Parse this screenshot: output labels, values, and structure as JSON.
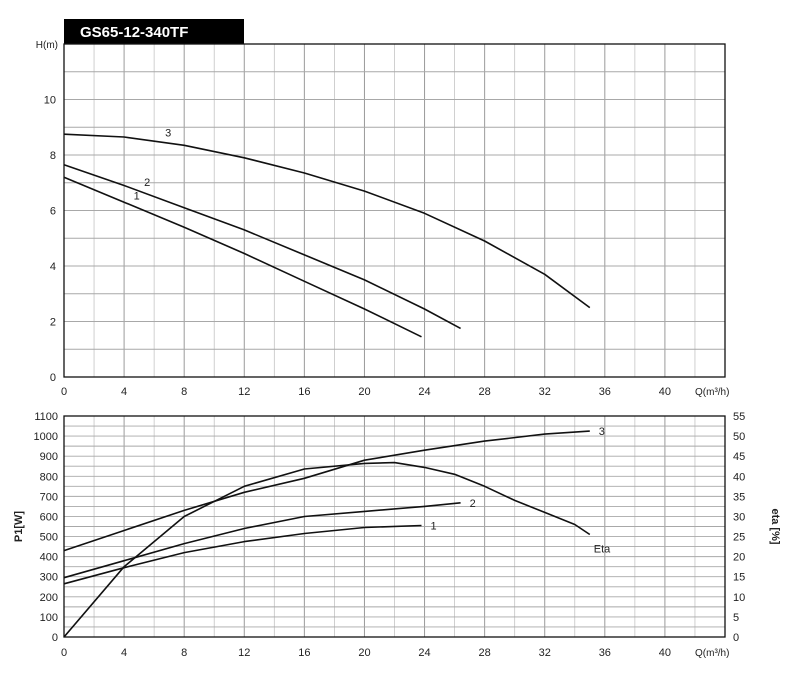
{
  "chart_data": [
    {
      "type": "line",
      "title": "GS65-12-340TF",
      "xlabel": "Q(m³/h)",
      "ylabel": "H(m)",
      "xlim": [
        0,
        44
      ],
      "ylim": [
        0,
        12
      ],
      "xticks": [
        0,
        4,
        8,
        12,
        16,
        20,
        24,
        28,
        32,
        36,
        40
      ],
      "yticks": [
        0,
        2,
        4,
        6,
        8,
        10
      ],
      "grid": true,
      "series": [
        {
          "name": "1",
          "x": [
            0,
            4,
            8,
            12,
            16,
            20,
            23.8
          ],
          "y": [
            7.2,
            6.3,
            5.4,
            4.45,
            3.45,
            2.45,
            1.45
          ]
        },
        {
          "name": "2",
          "x": [
            0,
            4,
            8,
            12,
            16,
            20,
            24,
            26.4
          ],
          "y": [
            7.65,
            6.9,
            6.1,
            5.3,
            4.4,
            3.5,
            2.45,
            1.75
          ]
        },
        {
          "name": "3",
          "x": [
            0,
            4,
            8,
            12,
            16,
            20,
            24,
            28,
            32,
            35
          ],
          "y": [
            8.75,
            8.65,
            8.35,
            7.9,
            7.35,
            6.7,
            5.9,
            4.9,
            3.7,
            2.5
          ]
        }
      ]
    },
    {
      "type": "line",
      "xlabel": "Q(m³/h)",
      "ylabel": "P1[W]",
      "y2label": "eta  [%]",
      "xlim": [
        0,
        44
      ],
      "ylim": [
        0,
        1100
      ],
      "y2lim": [
        0,
        55
      ],
      "xticks": [
        0,
        4,
        8,
        12,
        16,
        20,
        24,
        28,
        32,
        36,
        40
      ],
      "yticks": [
        0,
        100,
        200,
        300,
        400,
        500,
        600,
        700,
        800,
        900,
        1000,
        1100
      ],
      "y2ticks": [
        0,
        5,
        10,
        15,
        20,
        25,
        30,
        35,
        40,
        45,
        50,
        55
      ],
      "grid": true,
      "series": [
        {
          "name": "1",
          "axis": "left",
          "x": [
            0,
            4,
            8,
            12,
            16,
            20,
            23.8
          ],
          "y": [
            265,
            345,
            420,
            475,
            515,
            545,
            555
          ]
        },
        {
          "name": "2",
          "axis": "left",
          "x": [
            0,
            4,
            8,
            12,
            16,
            20,
            24,
            26.4
          ],
          "y": [
            295,
            380,
            465,
            540,
            600,
            625,
            650,
            668
          ]
        },
        {
          "name": "3",
          "axis": "left",
          "x": [
            0,
            4,
            8,
            12,
            16,
            20,
            24,
            28,
            32,
            35
          ],
          "y": [
            430,
            530,
            630,
            720,
            790,
            880,
            930,
            975,
            1010,
            1025
          ]
        },
        {
          "name": "Eta",
          "axis": "right",
          "x": [
            0,
            4,
            8,
            12,
            16,
            20,
            22,
            24,
            26,
            28,
            30,
            32,
            34,
            35
          ],
          "y": [
            0,
            17.5,
            30,
            37.5,
            41.8,
            43.2,
            43.4,
            42.2,
            40.5,
            37.5,
            34,
            31,
            28,
            25.5
          ]
        }
      ]
    }
  ]
}
